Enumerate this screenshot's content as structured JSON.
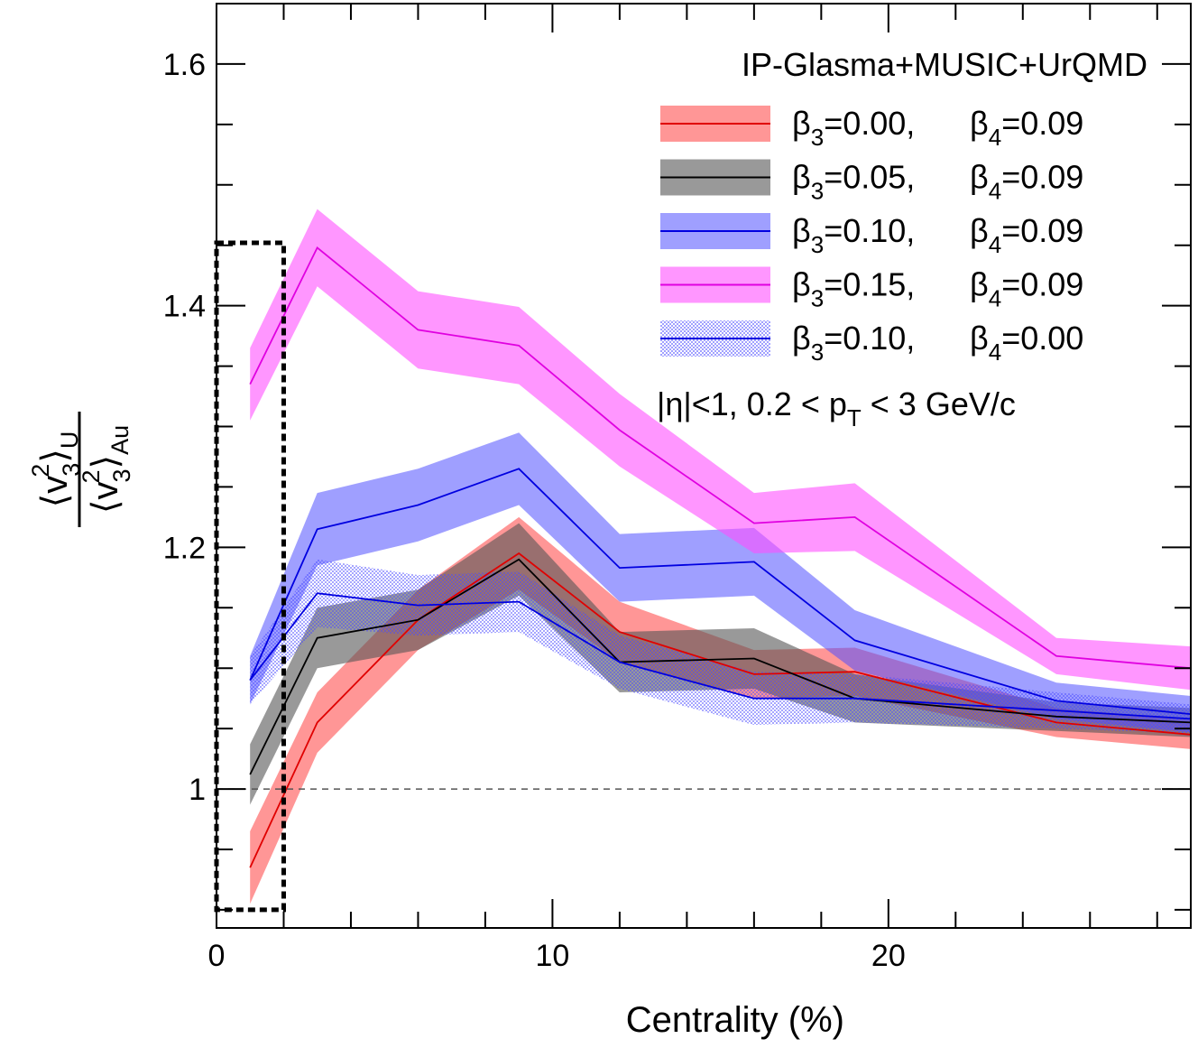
{
  "chart_data": {
    "type": "line",
    "title": "",
    "xlabel": "Centrality (%)",
    "ylabel": "<v3^2>_U / <v3^2>_Au",
    "ylabel_parts": {
      "num_base": "v",
      "num_sub": "3",
      "num_sup": "2",
      "num_tag": "U",
      "den_base": "v",
      "den_sub": "3",
      "den_sup": "2",
      "den_tag": "Au",
      "open": "⟨",
      "close": "⟩"
    },
    "xlim": [
      0,
      29
    ],
    "ylim": [
      0.885,
      1.65
    ],
    "x_ticks": [
      0,
      10,
      20
    ],
    "x_tick_labels": [
      "0",
      "10",
      "20"
    ],
    "y_ticks": [
      1.0,
      1.2,
      1.4,
      1.6
    ],
    "y_tick_labels": [
      "1",
      "1.2",
      "1.4",
      "1.6"
    ],
    "reference_line": 1.0,
    "legend_title": "IP-Glasma+MUSIC+UrQMD",
    "annotation": {
      "pre": "|η|<1, 0.2 < p",
      "sub": "T",
      "post": " < 3 GeV/c"
    },
    "highlight_box": {
      "x": [
        0.0,
        2.0
      ],
      "y": [
        0.9,
        1.452
      ]
    },
    "x": [
      1,
      3,
      6,
      9,
      12,
      16,
      19,
      25,
      29
    ],
    "series": [
      {
        "name": "β3=0.00, β4=0.09",
        "beta3_label": "=0.00,",
        "beta4_label": "=0.09",
        "line_color": "#e00000",
        "band_color": "#ff5050",
        "band_opacity": 0.6,
        "hatched": false,
        "values": [
          0.935,
          1.055,
          1.14,
          1.195,
          1.13,
          1.095,
          1.097,
          1.055,
          1.045
        ],
        "err": [
          0.03,
          0.025,
          0.025,
          0.03,
          0.025,
          0.02,
          0.02,
          0.012,
          0.012
        ]
      },
      {
        "name": "β3=0.05, β4=0.09",
        "beta3_label": "=0.05,",
        "beta4_label": "=0.09",
        "line_color": "#000000",
        "band_color": "#555555",
        "band_opacity": 0.6,
        "hatched": false,
        "values": [
          1.012,
          1.125,
          1.14,
          1.19,
          1.105,
          1.108,
          1.075,
          1.06,
          1.055
        ],
        "err": [
          0.025,
          0.025,
          0.025,
          0.03,
          0.025,
          0.025,
          0.02,
          0.012,
          0.012
        ]
      },
      {
        "name": "β3=0.10, β4=0.09",
        "beta3_label": "=0.10,",
        "beta4_label": "=0.09",
        "line_color": "#0000e0",
        "band_color": "#5050ff",
        "band_opacity": 0.55,
        "hatched": false,
        "values": [
          1.09,
          1.215,
          1.235,
          1.265,
          1.183,
          1.188,
          1.123,
          1.073,
          1.062
        ],
        "err": [
          0.02,
          0.03,
          0.03,
          0.03,
          0.028,
          0.028,
          0.025,
          0.015,
          0.015
        ]
      },
      {
        "name": "β3=0.15, β4=0.09",
        "beta3_label": "=0.15,",
        "beta4_label": "=0.09",
        "line_color": "#e000e0",
        "band_color": "#ff50ff",
        "band_opacity": 0.6,
        "hatched": false,
        "values": [
          1.335,
          1.448,
          1.38,
          1.367,
          1.297,
          1.22,
          1.225,
          1.11,
          1.1
        ],
        "err": [
          0.03,
          0.032,
          0.032,
          0.032,
          0.03,
          0.025,
          0.028,
          0.015,
          0.018
        ]
      },
      {
        "name": "β3=0.10, β4=0.00",
        "beta3_label": "=0.10,",
        "beta4_label": "=0.00",
        "line_color": "#0000e0",
        "band_color": "#5050ff",
        "band_opacity": 0.55,
        "hatched": true,
        "values": [
          1.09,
          1.162,
          1.152,
          1.155,
          1.105,
          1.075,
          1.075,
          1.065,
          1.058
        ],
        "err": [
          0.02,
          0.028,
          0.025,
          0.025,
          0.022,
          0.022,
          0.02,
          0.015,
          0.012
        ]
      }
    ]
  }
}
